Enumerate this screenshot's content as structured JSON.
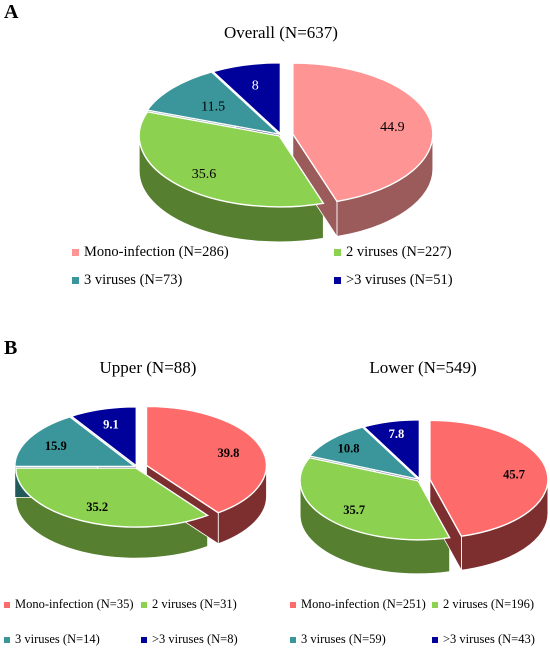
{
  "panels": [
    {
      "letter": "A"
    },
    {
      "letter": "B"
    }
  ],
  "chart_data": [
    {
      "type": "pie",
      "title": "Overall (N=637)",
      "categories": [
        "Mono-infection (N=286)",
        "2 viruses (N=227)",
        "3 viruses (N=73)",
        ">3 viruses (N=51)"
      ],
      "values": [
        44.9,
        35.6,
        11.5,
        8
      ],
      "value_labels": [
        "44.9",
        "35.6",
        "11.5",
        "8"
      ],
      "colors": [
        "#fe9493",
        "#8dd151",
        "#3b969b",
        "#00009a"
      ],
      "side_colors": [
        "#9a5b5a",
        "#577f30",
        "#24595c",
        "#00005c"
      ],
      "label_colors": [
        "#000000",
        "#000000",
        "#000000",
        "#ffffff"
      ],
      "exploded_slice": 0,
      "legend": "bottom"
    },
    {
      "type": "pie",
      "title": "Upper (N=88)",
      "categories": [
        "Mono-infection (N=35)",
        "2 viruses (N=31)",
        "3 viruses (N=14)",
        ">3 viruses (N=8)"
      ],
      "values": [
        39.8,
        35.2,
        15.9,
        9.1
      ],
      "value_labels": [
        "39.8",
        "35.2",
        "15.9",
        "9.1"
      ],
      "colors": [
        "#fe6b6b",
        "#8dd151",
        "#3b969b",
        "#00009a"
      ],
      "side_colors": [
        "#7d2f2f",
        "#577f30",
        "#24595c",
        "#00005c"
      ],
      "label_colors": [
        "#000000",
        "#000000",
        "#000000",
        "#ffffff"
      ],
      "exploded_slice": 0,
      "legend": "bottom"
    },
    {
      "type": "pie",
      "title": "Lower (N=549)",
      "categories": [
        "Mono-infection (N=251)",
        "2 viruses (N=196)",
        "3 viruses (N=59)",
        ">3 viruses (N=43)"
      ],
      "values": [
        45.7,
        35.7,
        10.8,
        7.8
      ],
      "value_labels": [
        "45.7",
        "35.7",
        "10.8",
        "7.8"
      ],
      "colors": [
        "#fe6b6b",
        "#8dd151",
        "#3b969b",
        "#00009a"
      ],
      "side_colors": [
        "#7d2f2f",
        "#577f30",
        "#24595c",
        "#00005c"
      ],
      "label_colors": [
        "#000000",
        "#000000",
        "#000000",
        "#ffffff"
      ],
      "exploded_slice": 0,
      "legend": "bottom"
    }
  ]
}
